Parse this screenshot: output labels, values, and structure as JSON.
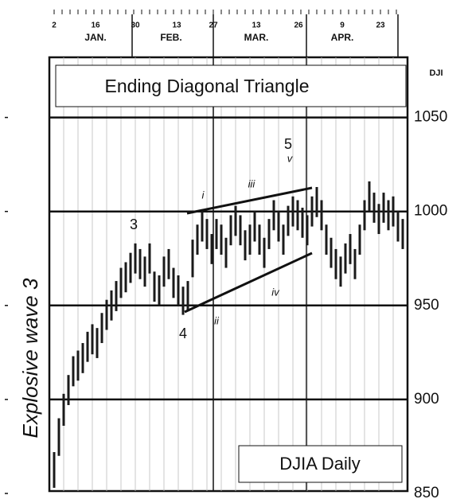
{
  "chart_data": {
    "type": "range",
    "title": "Ending Diagonal Triangle",
    "y_axis_label": "DJI",
    "date_ticks": [
      "2",
      "16",
      "30",
      "13",
      "27",
      "13",
      "26",
      "9",
      "23"
    ],
    "months": [
      "JAN.",
      "FEB.",
      "MAR.",
      "APR."
    ],
    "annotations": [
      "Explosive wave 3",
      "3",
      "4",
      "5",
      "v",
      "i",
      "ii",
      "iii",
      "iv"
    ],
    "ylim": [
      850,
      1082
    ],
    "yticks": [
      850,
      900,
      950,
      1000,
      1050
    ],
    "grid": true,
    "series": [
      {
        "name": "DJIA Daily",
        "color": "#1a1a1a",
        "low": [
          853,
          870,
          886,
          897,
          907,
          910,
          914,
          920,
          924,
          922,
          930,
          937,
          942,
          947,
          954,
          957,
          962,
          967,
          964,
          960,
          967,
          952,
          950,
          960,
          964,
          954,
          950,
          945,
          947,
          965,
          977,
          984,
          980,
          972,
          980,
          977,
          970,
          982,
          987,
          982,
          974,
          977,
          984,
          977,
          970,
          980,
          990,
          984,
          977,
          987,
          992,
          990,
          986,
          982,
          992,
          997,
          990,
          977,
          970,
          964,
          960,
          967,
          972,
          964,
          977,
          990,
          1000,
          994,
          988,
          994,
          990,
          992,
          984,
          980
        ],
        "high": [
          872,
          890,
          903,
          913,
          923,
          926,
          930,
          936,
          940,
          938,
          946,
          953,
          958,
          963,
          970,
          973,
          978,
          983,
          980,
          976,
          983,
          968,
          966,
          976,
          980,
          970,
          966,
          960,
          963,
          985,
          993,
          1000,
          996,
          988,
          996,
          993,
          986,
          998,
          1003,
          998,
          990,
          993,
          1000,
          993,
          986,
          996,
          1006,
          1000,
          993,
          1003,
          1008,
          1006,
          1002,
          998,
          1008,
          1013,
          1006,
          993,
          986,
          980,
          976,
          983,
          988,
          980,
          993,
          1006,
          1016,
          1010,
          1004,
          1010,
          1006,
          1008,
          1000,
          996
        ]
      }
    ]
  }
}
